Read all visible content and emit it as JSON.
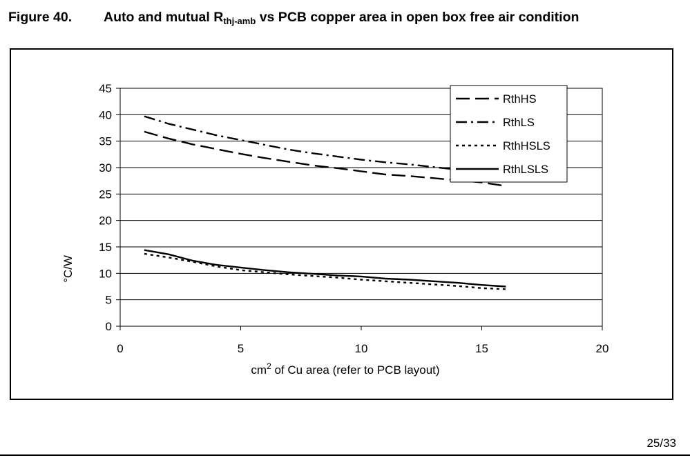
{
  "figure": {
    "number": "Figure 40.",
    "title_part1": "Auto and mutual R",
    "title_sub": "thj-amb",
    "title_part2": " vs PCB copper area in open box free air condition"
  },
  "footer": {
    "page": "25/33"
  },
  "chart_data": {
    "type": "line",
    "title": "",
    "xlabel_prefix": "cm",
    "xlabel_sup": "2",
    "xlabel_rest": " of Cu area (refer to PCB layout)",
    "ylabel": "°C/W",
    "xlim": [
      0,
      20
    ],
    "ylim": [
      0,
      45
    ],
    "xticks": [
      0,
      5,
      10,
      15,
      20
    ],
    "yticks": [
      0,
      5,
      10,
      15,
      20,
      25,
      30,
      35,
      40,
      45
    ],
    "grid": "horizontal",
    "legend_position": "top-right",
    "x": [
      1,
      2,
      3,
      4,
      5,
      6,
      7,
      8,
      9,
      10,
      11,
      12,
      13,
      14,
      15,
      16
    ],
    "series": [
      {
        "name": "RthHS",
        "dash": "dashed",
        "color": "#000000",
        "values": [
          36.8,
          35.5,
          34.4,
          33.5,
          32.6,
          31.8,
          31.1,
          30.4,
          29.9,
          29.3,
          28.7,
          28.4,
          28.0,
          27.6,
          27.2,
          26.5
        ]
      },
      {
        "name": "RthLS",
        "dash": "dash-dot",
        "color": "#000000",
        "values": [
          39.7,
          38.3,
          37.2,
          36.1,
          35.2,
          34.3,
          33.4,
          32.7,
          32.1,
          31.5,
          31.0,
          30.6,
          30.1,
          29.6,
          29.0,
          28.6
        ]
      },
      {
        "name": "RthHSLS",
        "dash": "dotted",
        "color": "#000000",
        "values": [
          13.7,
          13.0,
          12.2,
          11.3,
          10.6,
          10.2,
          9.8,
          9.5,
          9.2,
          8.8,
          8.5,
          8.2,
          7.9,
          7.6,
          7.2,
          7.0
        ]
      },
      {
        "name": "RthLSLS",
        "dash": "solid",
        "color": "#000000",
        "values": [
          14.4,
          13.6,
          12.4,
          11.6,
          11.1,
          10.6,
          10.2,
          9.9,
          9.6,
          9.4,
          9.0,
          8.8,
          8.5,
          8.2,
          7.8,
          7.5
        ]
      }
    ]
  }
}
